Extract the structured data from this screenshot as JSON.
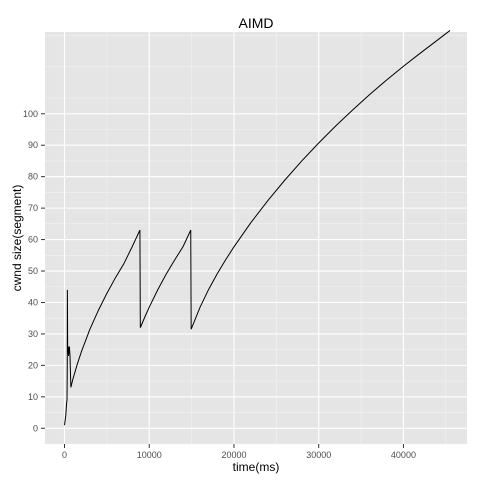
{
  "chart_data": {
    "type": "line",
    "title": "AIMD",
    "xlabel": "time(ms)",
    "ylabel": "cwnd size(segment)",
    "xlim": [
      -2300,
      47500
    ],
    "ylim": [
      -5,
      126
    ],
    "x_ticks": [
      0,
      10000,
      20000,
      30000,
      40000
    ],
    "y_ticks": [
      0,
      10,
      20,
      30,
      40,
      50,
      60,
      70,
      80,
      90,
      100
    ],
    "grid": true,
    "legend": "none",
    "colors": {
      "panel": "#e5e5e5",
      "grid_major": "#ffffff",
      "grid_minor": "#f2f2f2",
      "line": "#000000"
    },
    "series": [
      {
        "points": [
          [
            0,
            1
          ],
          [
            150,
            4
          ],
          [
            250,
            8
          ],
          [
            300,
            9
          ],
          [
            330,
            21
          ],
          [
            340,
            44
          ],
          [
            380,
            24
          ],
          [
            430,
            26
          ],
          [
            480,
            23
          ],
          [
            530,
            25
          ],
          [
            580,
            26
          ],
          [
            650,
            23
          ],
          [
            750,
            13
          ],
          [
            1000,
            15.7
          ],
          [
            1500,
            20.3
          ],
          [
            2000,
            24.4
          ],
          [
            3000,
            31.5
          ],
          [
            4000,
            37.5
          ],
          [
            5000,
            42.9
          ],
          [
            6000,
            47.8
          ],
          [
            7000,
            52.3
          ],
          [
            8000,
            57.8
          ],
          [
            8900,
            63
          ],
          [
            8950,
            32
          ],
          [
            9500,
            35.5
          ],
          [
            10000,
            38.5
          ],
          [
            11000,
            44
          ],
          [
            12000,
            49
          ],
          [
            13000,
            53.5
          ],
          [
            14000,
            57.8
          ],
          [
            14900,
            63
          ],
          [
            14950,
            31.5
          ],
          [
            16000,
            38.5
          ],
          [
            17000,
            44.1
          ],
          [
            18000,
            49
          ],
          [
            19000,
            53.5
          ],
          [
            20000,
            57.7
          ],
          [
            22000,
            65.4
          ],
          [
            24000,
            72.4
          ],
          [
            26000,
            78.9
          ],
          [
            28000,
            85
          ],
          [
            30000,
            90.7
          ],
          [
            32000,
            96.1
          ],
          [
            34000,
            101.2
          ],
          [
            36000,
            106.1
          ],
          [
            38000,
            110.7
          ],
          [
            40000,
            115.1
          ],
          [
            42000,
            119.3
          ],
          [
            44000,
            123.4
          ],
          [
            45500,
            126.5
          ]
        ]
      }
    ]
  }
}
